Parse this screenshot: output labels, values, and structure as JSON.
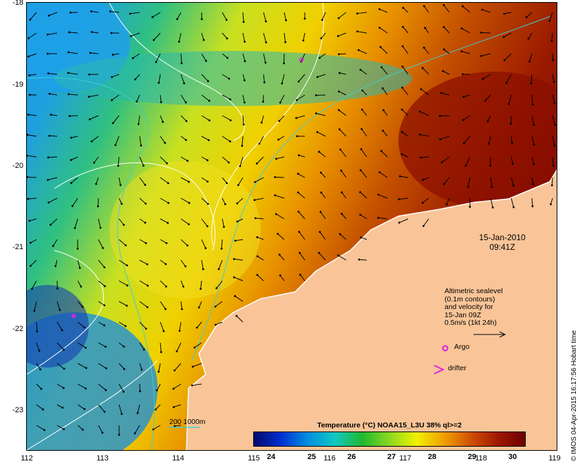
{
  "map": {
    "y_axis_labels": [
      "-18",
      "-19",
      "-20",
      "-21",
      "-22",
      "-23"
    ],
    "x_axis_labels": [
      "112",
      "113",
      "114",
      "115",
      "116",
      "117",
      "118",
      "119"
    ],
    "colors": {
      "land": "#f9c598",
      "contour": "#ffffff",
      "isobath": "#3ecfcf",
      "argo": "#e020e0",
      "drifter": "#e020e0",
      "arrow": "#000000"
    }
  },
  "overlay": {
    "date": "15-Jan-2010",
    "time": "09:41Z",
    "legend_lines": [
      "Altimetric sealevel",
      "(0.1m contours)",
      "and velocity for",
      "15-Jan 09Z",
      "0.5m/s (1kt 24h)"
    ],
    "argo_label": "Argo",
    "drifter_label": "drifter",
    "depth_label": "200  1000m"
  },
  "colorbar": {
    "title": "Temperature (°C) NOAA15_L3U 38% ql>=2",
    "ticks": [
      "24",
      "25",
      "26",
      "27",
      "28",
      "29",
      "30"
    ],
    "stops": [
      "#000a6e",
      "#0030d0",
      "#0090e0",
      "#10c8c0",
      "#20b830",
      "#8cd820",
      "#f0f000",
      "#f0a000",
      "#d05000",
      "#a01800",
      "#6e0000"
    ]
  },
  "credit": "© IMOS 04-Apr-2015 16:17:56 Hobart time"
}
